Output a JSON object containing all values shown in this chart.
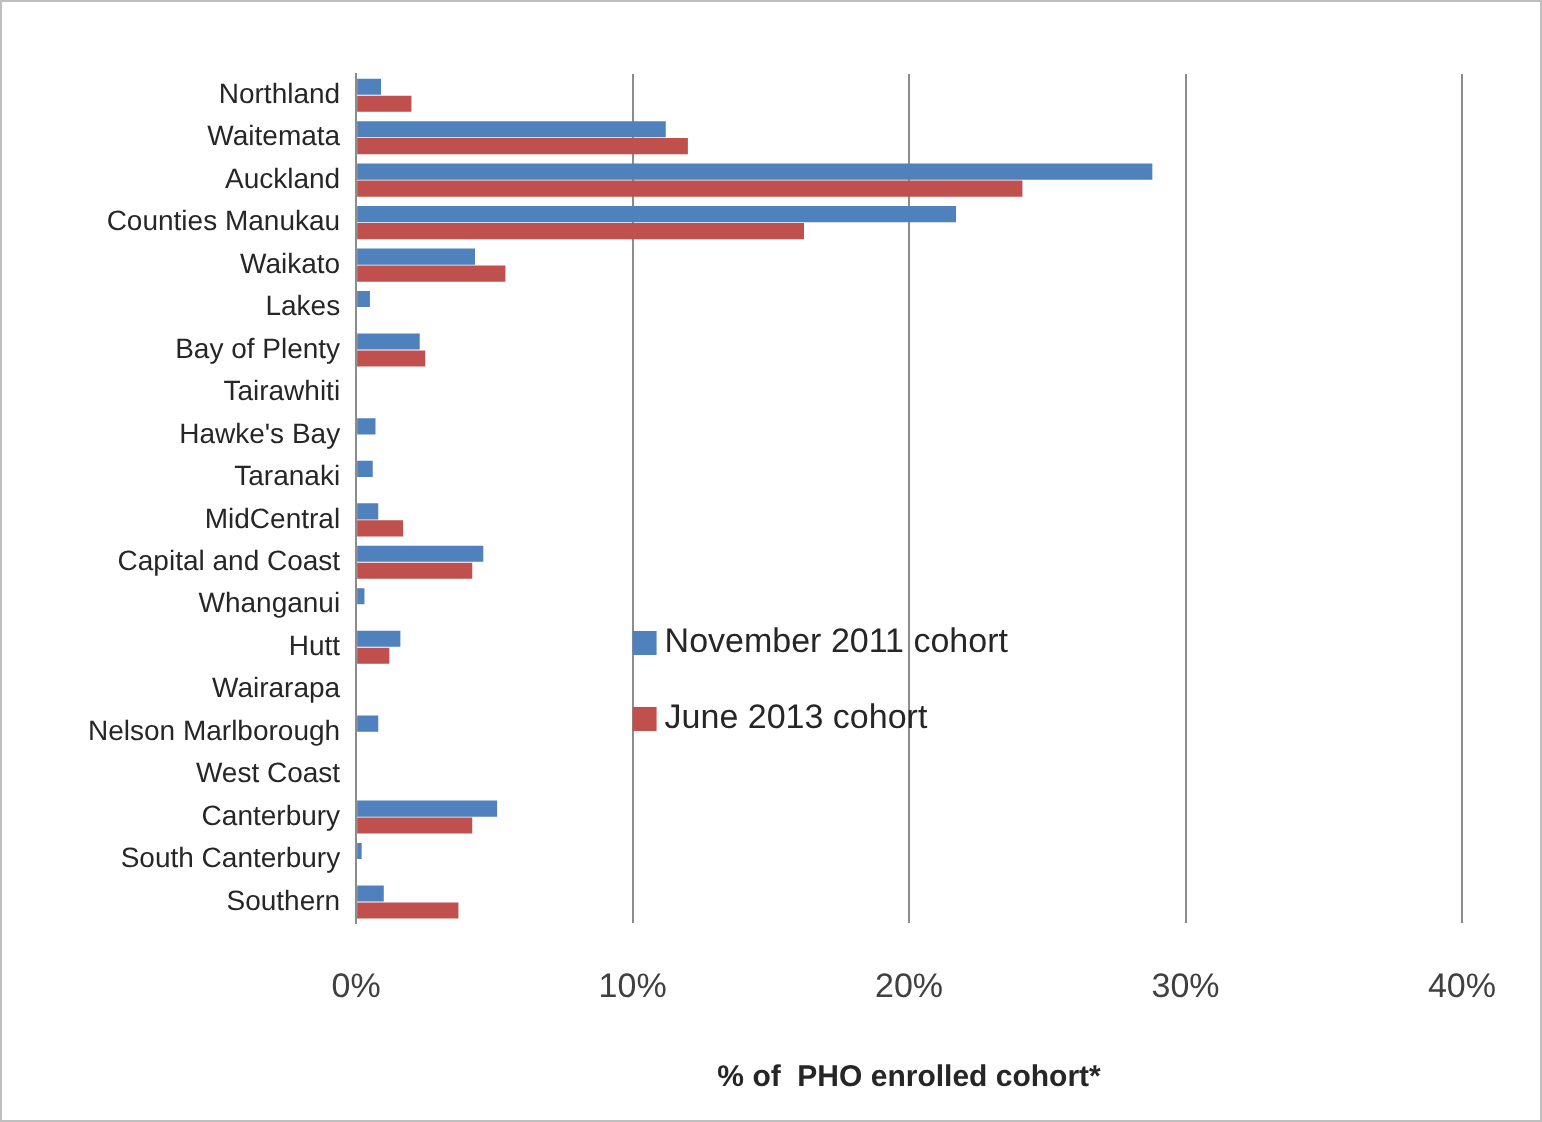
{
  "chart_data": {
    "type": "bar",
    "orientation": "horizontal",
    "xlabel": "% of  PHO enrolled cohort*",
    "categories": [
      "Northland",
      "Waitemata",
      "Auckland",
      "Counties Manukau",
      "Waikato",
      "Lakes",
      "Bay of Plenty",
      "Tairawhiti",
      "Hawke's Bay",
      "Taranaki",
      "MidCentral",
      "Capital and Coast",
      "Whanganui",
      "Hutt",
      "Wairarapa",
      "Nelson Marlborough",
      "West Coast",
      "Canterbury",
      "South Canterbury",
      "Southern"
    ],
    "series": [
      {
        "name": "November 2011 cohort",
        "color": "#4f81bd",
        "values": [
          0.9,
          11.2,
          28.8,
          21.7,
          4.3,
          0.5,
          2.3,
          0,
          0.7,
          0.6,
          0.8,
          4.6,
          0.3,
          1.6,
          0,
          0.8,
          0,
          5.1,
          0.2,
          1.0
        ]
      },
      {
        "name": "June 2013 cohort",
        "color": "#c0504d",
        "values": [
          2.0,
          12.0,
          24.1,
          16.2,
          5.4,
          0,
          2.5,
          0,
          0,
          0,
          1.7,
          4.2,
          0,
          1.2,
          0,
          0,
          0,
          4.2,
          0,
          3.7
        ]
      }
    ],
    "xlim": [
      0,
      40
    ],
    "xticks": [
      {
        "value": 0,
        "label": "0%"
      },
      {
        "value": 10,
        "label": "10%"
      },
      {
        "value": 20,
        "label": "20%"
      },
      {
        "value": 30,
        "label": "30%"
      },
      {
        "value": 40,
        "label": "40%"
      }
    ],
    "grid": "x",
    "legend": "center"
  }
}
